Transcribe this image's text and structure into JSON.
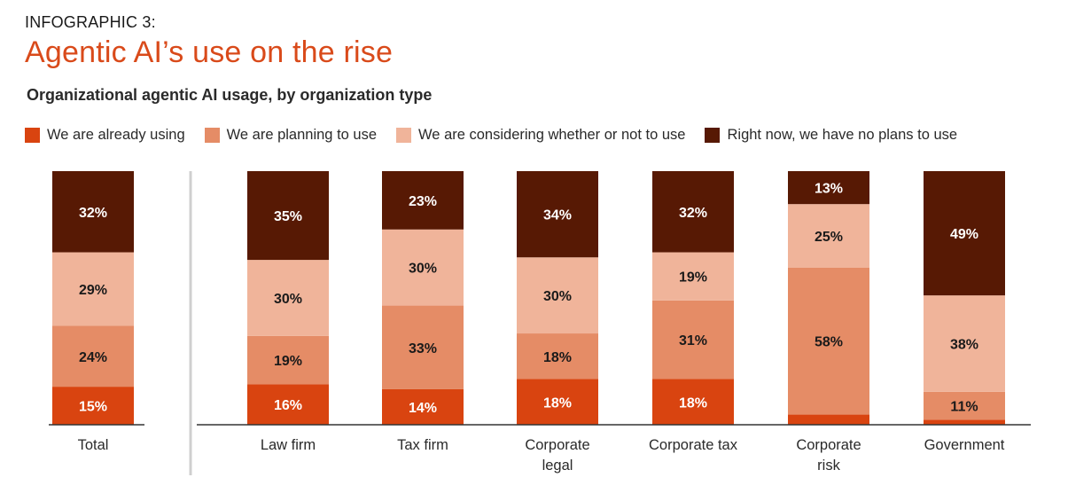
{
  "kicker": "INFOGRAPHIC 3:",
  "title": "Agentic AI’s use on the rise",
  "subtitle": "Organizational agentic AI usage, by organization type",
  "legend": [
    {
      "label": "We are already using",
      "color": "#d94410"
    },
    {
      "label": "We are planning to use",
      "color": "#e58c66"
    },
    {
      "label": "We are considering whether or not to use",
      "color": "#f0b49a"
    },
    {
      "label": "Right now, we have no plans to use",
      "color": "#571904"
    }
  ],
  "chart_data": {
    "type": "bar",
    "stacked": true,
    "unit": "%",
    "ylim": [
      0,
      100
    ],
    "categories": [
      [
        "Total"
      ],
      [
        "Law firm"
      ],
      [
        "Tax firm"
      ],
      [
        "Corporate",
        "legal"
      ],
      [
        "Corporate tax"
      ],
      [
        "Corporate",
        "risk"
      ],
      [
        "Government"
      ]
    ],
    "series": [
      {
        "name": "We are already using",
        "color": "#d94410",
        "values": [
          15,
          16,
          14,
          18,
          18,
          4,
          2
        ]
      },
      {
        "name": "We are planning to use",
        "color": "#e58c66",
        "values": [
          24,
          19,
          33,
          18,
          31,
          58,
          11
        ]
      },
      {
        "name": "We are considering whether or not to use",
        "color": "#f0b49a",
        "values": [
          29,
          30,
          30,
          30,
          19,
          25,
          38
        ]
      },
      {
        "name": "Right now, we have no plans to use",
        "color": "#571904",
        "values": [
          32,
          35,
          23,
          34,
          32,
          13,
          49
        ]
      }
    ],
    "labels": [
      [
        "15%",
        "24%",
        "29%",
        "32%"
      ],
      [
        "16%",
        "19%",
        "30%",
        "35%"
      ],
      [
        "14%",
        "33%",
        "30%",
        "23%"
      ],
      [
        "18%",
        "18%",
        "30%",
        "34%"
      ],
      [
        "18%",
        "31%",
        "19%",
        "32%"
      ],
      [
        "",
        "58%",
        "25%",
        "13%"
      ],
      [
        "",
        "11%",
        "38%",
        "49%"
      ]
    ],
    "label_colors": [
      "#ffffff",
      "#1a1a1a",
      "#1a1a1a",
      "#ffffff"
    ]
  }
}
